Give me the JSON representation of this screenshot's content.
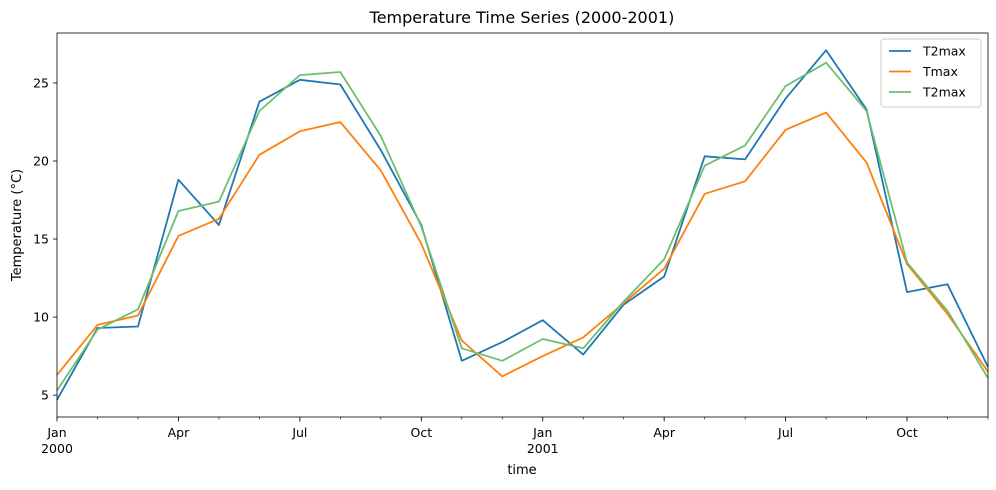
{
  "chart_data": {
    "type": "line",
    "title": "Temperature Time Series (2000-2001)",
    "xlabel": "time",
    "ylabel": "Temperature (°C)",
    "x": [
      "2000-01",
      "2000-02",
      "2000-03",
      "2000-04",
      "2000-05",
      "2000-06",
      "2000-07",
      "2000-08",
      "2000-09",
      "2000-10",
      "2000-11",
      "2000-12",
      "2001-01",
      "2001-02",
      "2001-03",
      "2001-04",
      "2001-05",
      "2001-06",
      "2001-07",
      "2001-08",
      "2001-09",
      "2001-10",
      "2001-11",
      "2001-12"
    ],
    "x_ticks": [
      {
        "x": "2000-01",
        "label": "Jan",
        "sublabel": "2000"
      },
      {
        "x": "2000-04",
        "label": "Apr",
        "sublabel": ""
      },
      {
        "x": "2000-07",
        "label": "Jul",
        "sublabel": ""
      },
      {
        "x": "2000-10",
        "label": "Oct",
        "sublabel": ""
      },
      {
        "x": "2001-01",
        "label": "Jan",
        "sublabel": "2001"
      },
      {
        "x": "2001-04",
        "label": "Apr",
        "sublabel": ""
      },
      {
        "x": "2001-07",
        "label": "Jul",
        "sublabel": ""
      },
      {
        "x": "2001-10",
        "label": "Oct",
        "sublabel": ""
      }
    ],
    "y_ticks": [
      5,
      10,
      15,
      20,
      25
    ],
    "ylim": [
      3.6,
      28.2
    ],
    "xlim": [
      "2000-01",
      "2001-12"
    ],
    "grid": false,
    "legend_position": "top-right",
    "series": [
      {
        "name": "T2max",
        "color": "#1f77b4",
        "values": [
          4.7,
          9.3,
          9.4,
          18.8,
          15.9,
          23.8,
          25.2,
          24.9,
          20.7,
          15.9,
          7.2,
          8.4,
          9.8,
          7.6,
          10.8,
          12.6,
          20.3,
          20.1,
          24.0,
          27.1,
          23.3,
          11.6,
          12.1,
          6.8
        ]
      },
      {
        "name": "Tmax",
        "color": "#ff7f0e",
        "values": [
          6.3,
          9.5,
          10.1,
          15.2,
          16.3,
          20.4,
          21.9,
          22.5,
          19.4,
          14.7,
          8.5,
          6.2,
          7.5,
          8.7,
          10.9,
          13.1,
          17.9,
          18.7,
          22.0,
          23.1,
          19.9,
          13.4,
          10.2,
          6.5
        ]
      },
      {
        "name": "T2max",
        "color": "#6dbf6d",
        "values": [
          5.3,
          9.2,
          10.5,
          16.8,
          17.4,
          23.2,
          25.5,
          25.7,
          21.6,
          15.8,
          8.0,
          7.2,
          8.6,
          8.0,
          11.0,
          13.7,
          19.7,
          21.0,
          24.8,
          26.3,
          23.2,
          13.5,
          10.4,
          6.1
        ]
      }
    ]
  }
}
